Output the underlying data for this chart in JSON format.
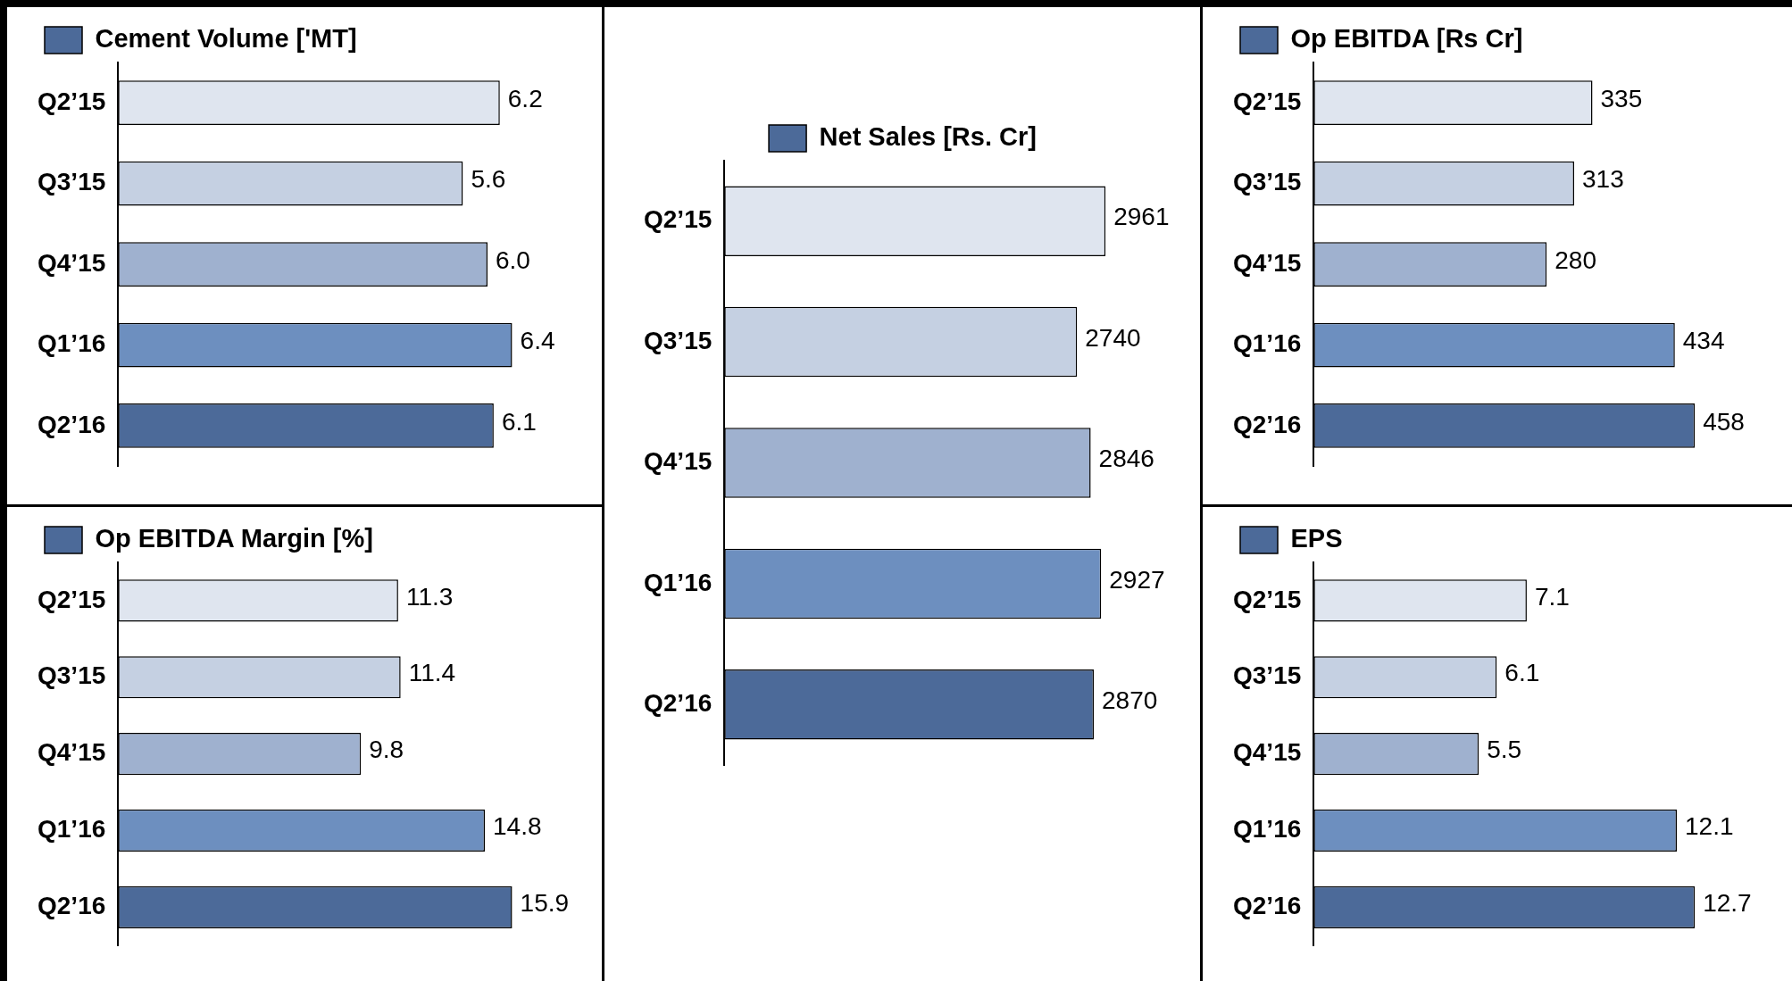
{
  "chart_data": [
    {
      "type": "bar",
      "orientation": "horizontal",
      "categories": [
        "Q2’15",
        "Q3’15",
        "Q4’15",
        "Q1’16",
        "Q2’16"
      ],
      "series": [
        {
          "name": "Cement Volume ['MT]",
          "color": "#4c6a99",
          "colors": [
            "#dfe5ef",
            "#c5d0e2",
            "#9fb1cf",
            "#6d8fbf",
            "#4c6a99"
          ],
          "values": [
            6.2,
            5.6,
            6.0,
            6.4,
            6.1
          ],
          "value_labels": [
            "6.2",
            "5.6",
            "6.0",
            "6.4",
            "6.1"
          ]
        }
      ],
      "data_labels": true,
      "legend": "top left",
      "tick_labels": "y"
    },
    {
      "type": "bar",
      "orientation": "horizontal",
      "categories": [
        "Q2’15",
        "Q3’15",
        "Q4’15",
        "Q1’16",
        "Q2’16"
      ],
      "series": [
        {
          "name": "Net Sales [Rs. Cr]",
          "color": "#4c6a99",
          "colors": [
            "#dfe5ef",
            "#c5d0e2",
            "#9fb1cf",
            "#6d8fbf",
            "#4c6a99"
          ],
          "values": [
            2961,
            2740,
            2846,
            2927,
            2870
          ]
        }
      ],
      "data_labels": true,
      "legend": "top",
      "tick_labels": "y"
    },
    {
      "type": "bar",
      "orientation": "horizontal",
      "categories": [
        "Q2’15",
        "Q3’15",
        "Q4’15",
        "Q1’16",
        "Q2’16"
      ],
      "series": [
        {
          "name": "Op EBITDA [Rs Cr]",
          "color": "#4c6a99",
          "colors": [
            "#dfe5ef",
            "#c5d0e2",
            "#9fb1cf",
            "#6d8fbf",
            "#4c6a99"
          ],
          "values": [
            335,
            313,
            280,
            434,
            458
          ]
        }
      ],
      "data_labels": true,
      "legend": "top left",
      "tick_labels": "y"
    },
    {
      "type": "bar",
      "orientation": "horizontal",
      "categories": [
        "Q2’15",
        "Q3’15",
        "Q4’15",
        "Q1’16",
        "Q2’16"
      ],
      "series": [
        {
          "name": "Op EBITDA Margin [%]",
          "color": "#4c6a99",
          "colors": [
            "#dfe5ef",
            "#c5d0e2",
            "#9fb1cf",
            "#6d8fbf",
            "#4c6a99"
          ],
          "values": [
            11.3,
            11.4,
            9.8,
            14.8,
            15.9
          ]
        }
      ],
      "data_labels": true,
      "legend": "top left",
      "tick_labels": "y"
    },
    {
      "type": "bar",
      "orientation": "horizontal",
      "categories": [
        "Q2’15",
        "Q3’15",
        "Q4’15",
        "Q1’16",
        "Q2’16"
      ],
      "series": [
        {
          "name": "EPS",
          "color": "#4c6a99",
          "colors": [
            "#dfe5ef",
            "#c5d0e2",
            "#9fb1cf",
            "#6d8fbf",
            "#4c6a99"
          ],
          "values": [
            7.1,
            6.1,
            5.5,
            12.1,
            12.7
          ]
        }
      ],
      "data_labels": true,
      "legend": "top left",
      "tick_labels": "y"
    }
  ]
}
